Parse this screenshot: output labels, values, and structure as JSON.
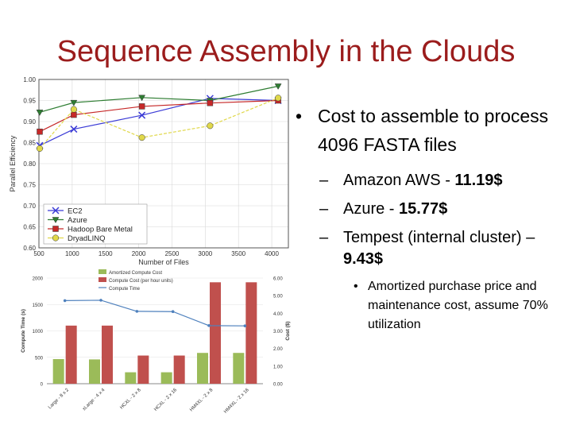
{
  "slide": {
    "title": "Sequence Assembly in the Clouds",
    "bullet_main": "Cost to assemble to process 4096 FASTA files",
    "sub_bullets": [
      {
        "prefix": "Amazon AWS - ",
        "value": "11.19$"
      },
      {
        "prefix": "Azure - ",
        "value": "15.77$"
      },
      {
        "prefix": "Tempest (internal cluster) – ",
        "value": "9.43$"
      }
    ],
    "sub_sub_bullet": "Amortized purchase price and maintenance cost, assume 70% utilization"
  },
  "chart_data": [
    {
      "type": "line",
      "ylabel": "Parallel Efficiency",
      "xlabel": "Number of Files",
      "xlim": [
        500,
        4250
      ],
      "ylim": [
        0.6,
        1.0
      ],
      "xticks": [
        500,
        1000,
        1500,
        2000,
        2500,
        3000,
        3500,
        4000
      ],
      "xtick_labels": [
        "500",
        "1000",
        "1500",
        "2000",
        "2500",
        "3000",
        "3500",
        "4000"
      ],
      "yticks": [
        0.6,
        0.65,
        0.7,
        0.75,
        0.8,
        0.85,
        0.9,
        0.95,
        1.0
      ],
      "ytick_labels": [
        "0.60",
        "0.65",
        "0.70",
        "0.75",
        "0.80",
        "0.85",
        "0.90",
        "0.95",
        "1.00"
      ],
      "legend_position": "lower-left",
      "series": [
        {
          "name": "EC2",
          "color": "#3b3bd6",
          "marker": "x",
          "x": [
            512,
            1024,
            2048,
            3072,
            4096
          ],
          "y": [
            0.843,
            0.882,
            0.915,
            0.955,
            0.95
          ]
        },
        {
          "name": "Azure",
          "color": "#2e7d32",
          "marker": "triangle-down",
          "x": [
            512,
            1024,
            2048,
            3072,
            4096
          ],
          "y": [
            0.922,
            0.945,
            0.957,
            0.95,
            0.984
          ]
        },
        {
          "name": "Hadoop Bare Metal",
          "color": "#c62828",
          "marker": "square",
          "x": [
            512,
            1024,
            2048,
            3072,
            4096
          ],
          "y": [
            0.876,
            0.916,
            0.936,
            0.944,
            0.95
          ]
        },
        {
          "name": "DryadLINQ",
          "color": "#e0d84a",
          "marker": "circle",
          "x": [
            512,
            1024,
            2048,
            3072,
            4096
          ],
          "y": [
            0.836,
            0.929,
            0.862,
            0.89,
            0.956
          ]
        }
      ]
    },
    {
      "type": "bar",
      "ylabel_left": "Compute Time (s)",
      "ylabel_right": "Cost ($)",
      "categories": [
        "Large - 8 x 2",
        "xLarge - 4 x 4",
        "HCXL - 2 x 8",
        "HCXL - 2 x 16",
        "HM4XL - 2 x 8",
        "HM4XL - 2 x 16"
      ],
      "ylim_left": [
        0,
        2000
      ],
      "yticks_left": [
        0,
        500,
        1000,
        1500,
        2000
      ],
      "ylim_right": [
        0,
        6
      ],
      "yticks_right": [
        "0.00",
        "1.00",
        "2.00",
        "3.00",
        "4.00",
        "5.00",
        "6.00"
      ],
      "legend_position": "top-left",
      "series": [
        {
          "name": "Amortized Compute Cost",
          "color": "#9bbb59",
          "axis": "right",
          "values": [
            1.4,
            1.38,
            0.65,
            0.65,
            1.75,
            1.75
          ]
        },
        {
          "name": "Compute Cost (per hour units)",
          "color": "#c0504d",
          "axis": "right",
          "values": [
            3.3,
            3.3,
            1.6,
            1.6,
            5.76,
            5.76
          ]
        },
        {
          "name": "Compute Time",
          "color": "#4f81bd",
          "axis": "left",
          "type": "line",
          "values": [
            1573,
            1580,
            1370,
            1365,
            1100,
            1095
          ]
        }
      ]
    }
  ]
}
